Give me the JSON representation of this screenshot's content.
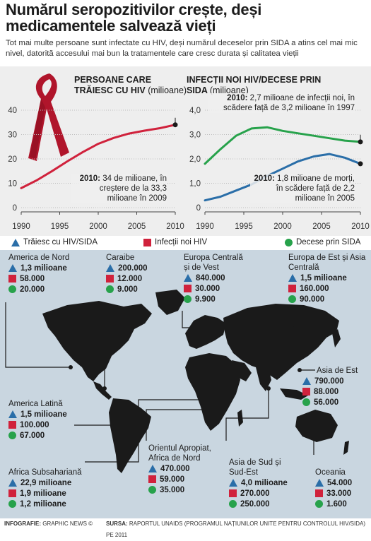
{
  "header": {
    "title": "Numărul seropozitivilor crește, deși medicamentele salvează vieți",
    "subtitle": "Tot mai multe persoane sunt infectate cu HIV, deși numărul deceselor prin SIDA a atins cel mai mic nivel, datorită accesului mai bun la tratamentele care cresc durata și calitatea vieții"
  },
  "chart_data": [
    {
      "type": "line",
      "title": "PERSOANE CARE TRĂIESC CU HIV",
      "unit": "(milioane)",
      "x": [
        1990,
        1992,
        1994,
        1996,
        1998,
        2000,
        2002,
        2004,
        2006,
        2008,
        2010
      ],
      "series": [
        {
          "values": [
            8.0,
            11.2,
            15.0,
            19.0,
            22.8,
            26.2,
            28.6,
            30.4,
            31.6,
            32.6,
            34.0
          ]
        }
      ],
      "xticks": [
        "1990",
        "1995",
        "2000",
        "2005",
        "2010"
      ],
      "yticks": [
        "0",
        "10",
        "20",
        "30",
        "40"
      ],
      "ylim": [
        0,
        40
      ],
      "annotation": {
        "bold": "2010:",
        "text": " 34 de milioane, în creștere de la 33,3 milioane în 2009"
      }
    },
    {
      "type": "line",
      "title": "INFECȚII NOI HIV/DECESE PRIN SIDA",
      "unit": "(milioane)",
      "x": [
        1990,
        1992,
        1994,
        1996,
        1998,
        2000,
        2002,
        2004,
        2006,
        2008,
        2010
      ],
      "series": [
        {
          "values": [
            1.8,
            2.4,
            2.95,
            3.25,
            3.3,
            3.15,
            3.05,
            2.95,
            2.85,
            2.75,
            2.7
          ]
        },
        {
          "values": [
            0.3,
            0.45,
            0.7,
            0.95,
            1.3,
            1.6,
            1.9,
            2.1,
            2.2,
            2.05,
            1.8
          ]
        }
      ],
      "xticks": [
        "1990",
        "1995",
        "2000",
        "2005",
        "2010"
      ],
      "yticks": [
        "0",
        "1,0",
        "2,0",
        "3,0",
        "4,0"
      ],
      "ylim": [
        0,
        4
      ],
      "annotation_green": {
        "bold": "2010:",
        "text": " 2,7 milioane de infecții noi, în scădere față de 3,2 milioane în 1997"
      },
      "annotation_blue": {
        "bold": "2010:",
        "text": " 1,8 milioane de morți, în scădere față de 2,2 milioane în 2005"
      }
    }
  ],
  "legend": {
    "living": "Trăiesc cu HIV/SIDA",
    "new": "Infecții noi HIV",
    "deaths": "Decese prin SIDA"
  },
  "colors": {
    "blue": "#2a6ea8",
    "red": "#d0223c",
    "green": "#27a24b",
    "map_land": "#1a1a1a",
    "map_sea": "#c9d6e0"
  },
  "regions": [
    {
      "name": "America de Nord",
      "living": "1,3 milioane",
      "new": "58.000",
      "deaths": "20.000"
    },
    {
      "name": "Caraibe",
      "living": "200.000",
      "new": "12.000",
      "deaths": "9.000"
    },
    {
      "name": "Europa Centrală și de Vest",
      "living": "840.000",
      "new": "30.000",
      "deaths": "9.900"
    },
    {
      "name": "Europa de Est și Asia Centrală",
      "living": "1,5 milioane",
      "new": "160.000",
      "deaths": "90.000"
    },
    {
      "name": "Asia de Est",
      "living": "790.000",
      "new": "88.000",
      "deaths": "56.000"
    },
    {
      "name": "America Latină",
      "living": "1,5 milioane",
      "new": "100.000",
      "deaths": "67.000"
    },
    {
      "name": "Orientul Apropiat, Africa de Nord",
      "living": "470.000",
      "new": "59.000",
      "deaths": "35.000"
    },
    {
      "name": "Asia de Sud și Sud-Est",
      "living": "4,0 milioane",
      "new": "270.000",
      "deaths": "250.000"
    },
    {
      "name": "Oceania",
      "living": "54.000",
      "new": "33.000",
      "deaths": "1.600"
    },
    {
      "name": "Africa Subsahariană",
      "living": "22,9 milioane",
      "new": "1,9 milioane",
      "deaths": "1,2 milioane"
    }
  ],
  "footer": {
    "infografie_label": "INFOGRAFIE:",
    "infografie": "GRAPHIC NEWS ©",
    "sursa_label": "SURSA:",
    "sursa": "RAPORTUL UNAIDS (PROGRAMUL NAȚIUNILOR UNITE PENTRU CONTROLUL HIV/SIDA) PE 2011"
  }
}
